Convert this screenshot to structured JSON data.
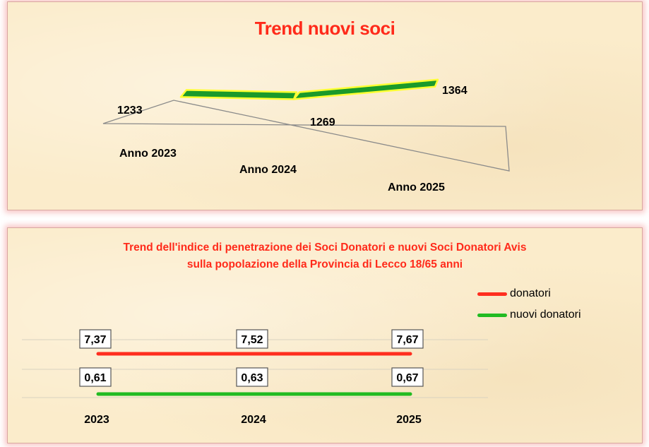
{
  "chart_data": [
    {
      "type": "line",
      "title": "Trend nuovi soci",
      "categories": [
        "Anno 2023",
        "Anno 2024",
        "Anno 2025"
      ],
      "series": [
        {
          "values": [
            1233,
            1269,
            1364
          ]
        }
      ],
      "data_labels": [
        "1233",
        "1269",
        "1364"
      ],
      "style": "3d-ribbon",
      "color": "#1a9a2a",
      "outline_color": "#ffff33",
      "ylim": [
        1200,
        1400
      ]
    },
    {
      "type": "line",
      "title": "Trend dell'indice di penetrazione dei Soci Donatori e nuovi Soci Donatori Avis",
      "subtitle": "sulla popolazione della Provincia di Lecco 18/65 anni",
      "categories": [
        "2023",
        "2024",
        "2025"
      ],
      "series": [
        {
          "name": "donatori",
          "values": [
            7.37,
            7.52,
            7.67
          ],
          "labels": [
            "7,37",
            "7,52",
            "7,67"
          ],
          "color": "#ff2e1f"
        },
        {
          "name": "nuovi donatori",
          "values": [
            0.61,
            0.63,
            0.67
          ],
          "labels": [
            "0,61",
            "0,63",
            "0,67"
          ],
          "color": "#22bb22"
        }
      ],
      "legend_position": "top-right",
      "grid": true
    }
  ]
}
